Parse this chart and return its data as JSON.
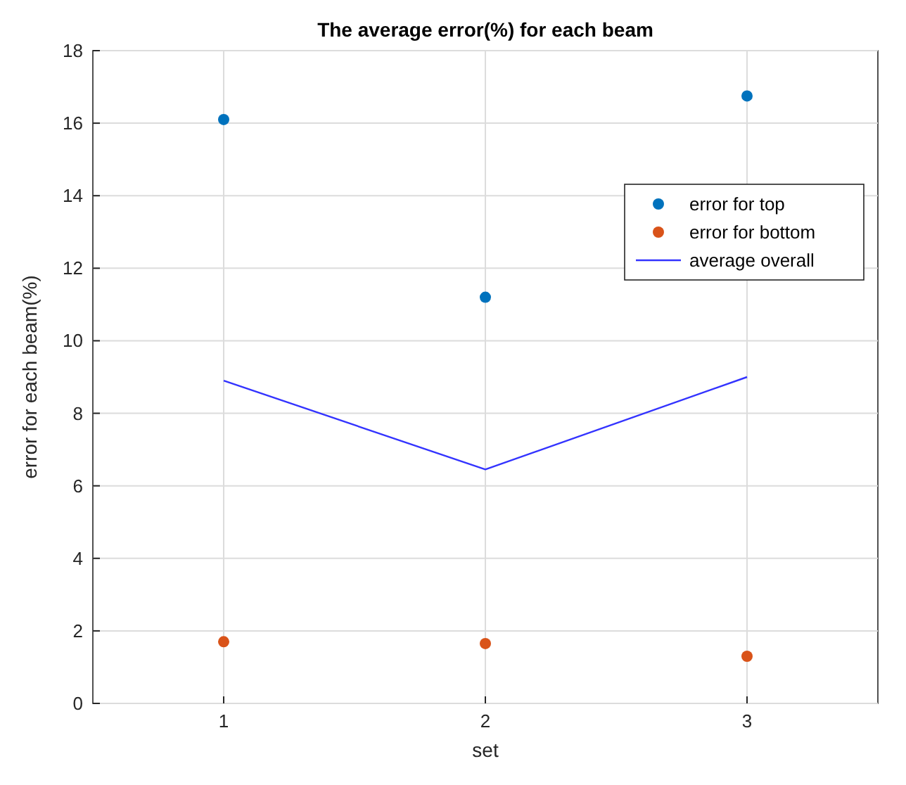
{
  "chart_data": {
    "type": "scatter",
    "title": "The average error(%) for each beam",
    "xlabel": "set",
    "ylabel": "error for each beam(%)",
    "x": [
      1,
      2,
      3
    ],
    "xlim": [
      0.5,
      3.5
    ],
    "xticks": [
      1,
      2,
      3
    ],
    "ylim": [
      0,
      18
    ],
    "yticks": [
      0,
      2,
      4,
      6,
      8,
      10,
      12,
      14,
      16,
      18
    ],
    "grid": true,
    "legend": "top right",
    "marker": "circle",
    "series": [
      {
        "name": "error for top",
        "color": "#0072bd",
        "values": [
          16.1,
          11.2,
          16.75
        ]
      },
      {
        "name": "error for bottom",
        "color": "#d95319",
        "values": [
          1.7,
          1.65,
          1.3
        ]
      },
      {
        "name": "average overall",
        "color": "#3333ff",
        "type": "line",
        "marker": "none",
        "values": [
          8.9,
          6.45,
          9.0
        ]
      }
    ]
  }
}
